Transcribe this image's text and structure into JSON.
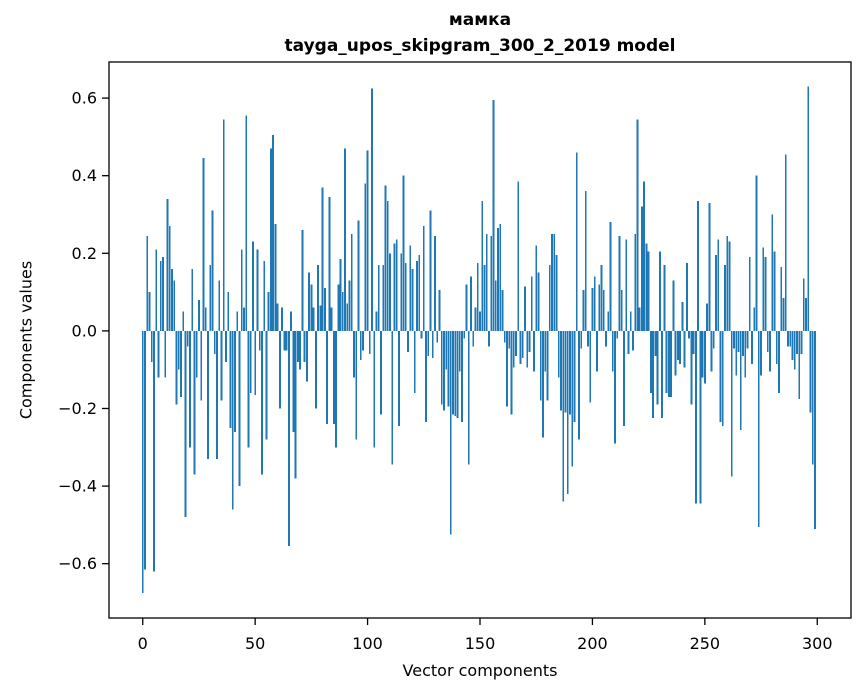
{
  "figure": {
    "title_line1": "мамка",
    "title_line2": "tayga_upos_skipgram_300_2_2019 model",
    "xlabel": "Vector components",
    "ylabel": "Components values"
  },
  "colors": {
    "bar": "#1f77b4",
    "axis": "#000000",
    "background": "#ffffff"
  },
  "chart_data": {
    "type": "bar",
    "title": "мамка",
    "subtitle": "tayga_upos_skipgram_300_2_2019 model",
    "xlabel": "Vector components",
    "ylabel": "Components values",
    "n_components": 300,
    "xlim": [
      -15,
      315
    ],
    "ylim": [
      -0.74,
      0.693
    ],
    "grid": false,
    "legend": "none",
    "bar_color": "#1f77b4",
    "x_tick_values": [
      0,
      50,
      100,
      150,
      200,
      250,
      300
    ],
    "x_tick_labels": [
      "0",
      "50",
      "100",
      "150",
      "200",
      "250",
      "300"
    ],
    "y_tick_values": [
      0.6,
      0.4,
      0.2,
      0.0,
      -0.2,
      -0.4,
      -0.6
    ],
    "y_tick_labels": [
      "0.6",
      "0.4",
      "0.2",
      "0.0",
      "−0.2",
      "−0.4",
      "−0.6"
    ],
    "values": [
      -0.675,
      -0.615,
      0.245,
      0.1,
      -0.08,
      -0.62,
      0.21,
      -0.12,
      0.18,
      0.19,
      -0.12,
      0.34,
      0.27,
      0.16,
      0.13,
      -0.19,
      -0.1,
      -0.17,
      0.05,
      -0.48,
      -0.04,
      -0.3,
      0.16,
      -0.37,
      -0.12,
      0.08,
      -0.18,
      0.445,
      0.06,
      -0.33,
      0.17,
      0.31,
      -0.06,
      -0.33,
      0.13,
      -0.18,
      0.545,
      -0.08,
      0.1,
      -0.25,
      -0.46,
      -0.26,
      0.05,
      -0.4,
      0.21,
      0.06,
      0.555,
      -0.3,
      -0.16,
      0.23,
      -0.165,
      0.21,
      -0.05,
      -0.37,
      0.18,
      -0.28,
      0.1,
      0.47,
      0.505,
      0.275,
      0.07,
      -0.2,
      0.06,
      -0.05,
      -0.05,
      -0.555,
      0.05,
      -0.26,
      -0.38,
      -0.08,
      -0.1,
      0.26,
      -0.08,
      -0.13,
      0.15,
      0.12,
      0.06,
      -0.2,
      0.17,
      0.065,
      0.37,
      0.11,
      -0.24,
      0.345,
      0.06,
      -0.24,
      -0.3,
      0.12,
      0.185,
      0.1,
      0.47,
      0.07,
      0.13,
      0.25,
      -0.12,
      -0.28,
      0.285,
      -0.075,
      -0.05,
      0.38,
      0.465,
      -0.06,
      0.625,
      -0.3,
      0.05,
      0.17,
      -0.215,
      0.17,
      0.375,
      0.335,
      0.2,
      -0.345,
      0.225,
      0.235,
      -0.245,
      0.2,
      0.4,
      0.175,
      -0.055,
      0.22,
      0.16,
      -0.16,
      0.18,
      0.195,
      -0.02,
      0.27,
      -0.235,
      -0.065,
      0.31,
      -0.07,
      0.245,
      -0.03,
      0.105,
      -0.19,
      -0.205,
      -0.1,
      -0.195,
      -0.525,
      -0.215,
      -0.22,
      -0.225,
      -0.105,
      -0.235,
      -0.02,
      0.12,
      -0.345,
      0.14,
      -0.04,
      0.06,
      0.175,
      0.05,
      0.335,
      0.17,
      0.25,
      -0.04,
      0.245,
      0.595,
      0.13,
      0.265,
      0.275,
      0.105,
      -0.03,
      -0.195,
      -0.045,
      -0.215,
      -0.095,
      -0.065,
      0.385,
      -0.085,
      -0.07,
      0.115,
      -0.095,
      -0.055,
      0.14,
      -0.105,
      0.22,
      0.15,
      -0.18,
      -0.275,
      -0.105,
      -0.18,
      0.17,
      0.25,
      0.25,
      0.195,
      -0.12,
      -0.205,
      -0.44,
      -0.21,
      -0.42,
      -0.215,
      -0.35,
      -0.235,
      0.46,
      -0.28,
      -0.045,
      0.105,
      0.36,
      -0.04,
      -0.185,
      0.11,
      0.14,
      -0.105,
      0.12,
      0.17,
      0.105,
      -0.04,
      0.05,
      0.28,
      -0.105,
      -0.29,
      -0.02,
      0.245,
      0.105,
      -0.245,
      0.235,
      -0.06,
      0.05,
      -0.05,
      0.25,
      0.545,
      0.06,
      0.32,
      0.385,
      0.225,
      0.205,
      -0.16,
      -0.225,
      -0.065,
      -0.19,
      0.205,
      -0.225,
      0.17,
      -0.16,
      -0.17,
      -0.17,
      0.13,
      -0.115,
      -0.075,
      -0.085,
      0.075,
      -0.095,
      0.175,
      -0.02,
      -0.19,
      -0.06,
      -0.445,
      0.335,
      -0.445,
      -0.12,
      -0.135,
      0.07,
      0.33,
      -0.105,
      -0.045,
      0.195,
      0.235,
      -0.235,
      -0.245,
      0.17,
      0.245,
      0.23,
      -0.375,
      -0.045,
      -0.115,
      -0.055,
      -0.255,
      -0.065,
      -0.12,
      -0.045,
      0.19,
      -0.085,
      0.06,
      0.4,
      -0.505,
      -0.115,
      0.215,
      0.19,
      -0.055,
      -0.105,
      0.3,
      0.205,
      -0.085,
      -0.16,
      0.165,
      0.085,
      0.455,
      -0.04,
      -0.04,
      -0.075,
      -0.1,
      -0.06,
      -0.175,
      -0.06,
      0.135,
      0.085,
      0.63,
      -0.21,
      -0.345,
      -0.51
    ]
  }
}
